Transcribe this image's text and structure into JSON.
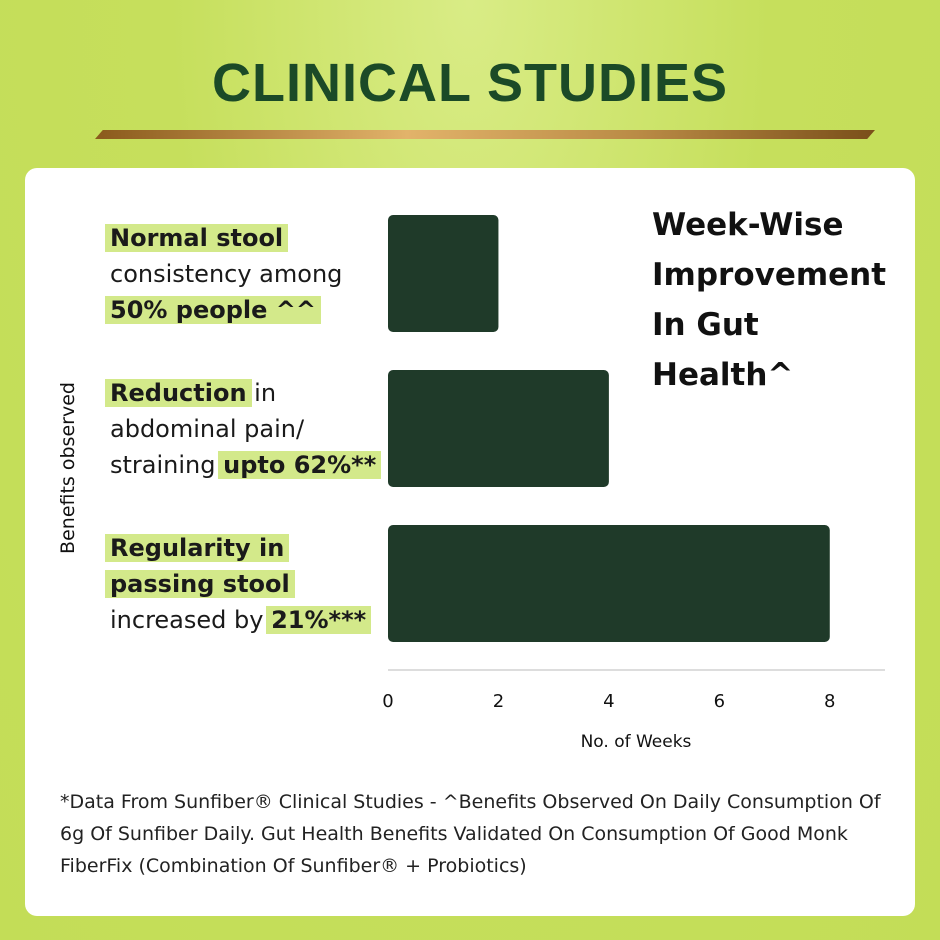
{
  "header": {
    "title": "CLINICAL STUDIES"
  },
  "chart_data": {
    "type": "barh",
    "title": "Week-Wise Improvement In Gut Health^",
    "y_label": "Benefits observed",
    "x_label": "No. of Weeks",
    "categories": [
      [
        {
          "text": "Normal stool",
          "highlight": true
        },
        {
          "text": " consistency among ",
          "highlight": false
        },
        {
          "text": "50% people ^^",
          "highlight": true
        }
      ],
      [
        {
          "text": "Reduction",
          "highlight": true
        },
        {
          "text": " in abdominal pain/ straining ",
          "highlight": false
        },
        {
          "text": "upto 62%**",
          "highlight": true
        }
      ],
      [
        {
          "text": "Regularity in passing stool",
          "highlight": true
        },
        {
          "text": " increased by ",
          "highlight": false
        },
        {
          "text": "21%***",
          "highlight": true
        }
      ]
    ],
    "values": [
      2,
      4,
      8
    ],
    "color": "#1f3a29",
    "xlim": [
      0,
      9
    ],
    "xticks": [
      0,
      2,
      4,
      6,
      8
    ],
    "grid": false
  },
  "footnote": "*Data From Sunfiber® Clinical Studies - ^Benefits Observed On Daily Consumption Of 6g Of Sunfiber Daily. Gut Health Benefits Validated On Consumption Of Good Monk FiberFix (Combination Of Sunfiber® + Probiotics)"
}
